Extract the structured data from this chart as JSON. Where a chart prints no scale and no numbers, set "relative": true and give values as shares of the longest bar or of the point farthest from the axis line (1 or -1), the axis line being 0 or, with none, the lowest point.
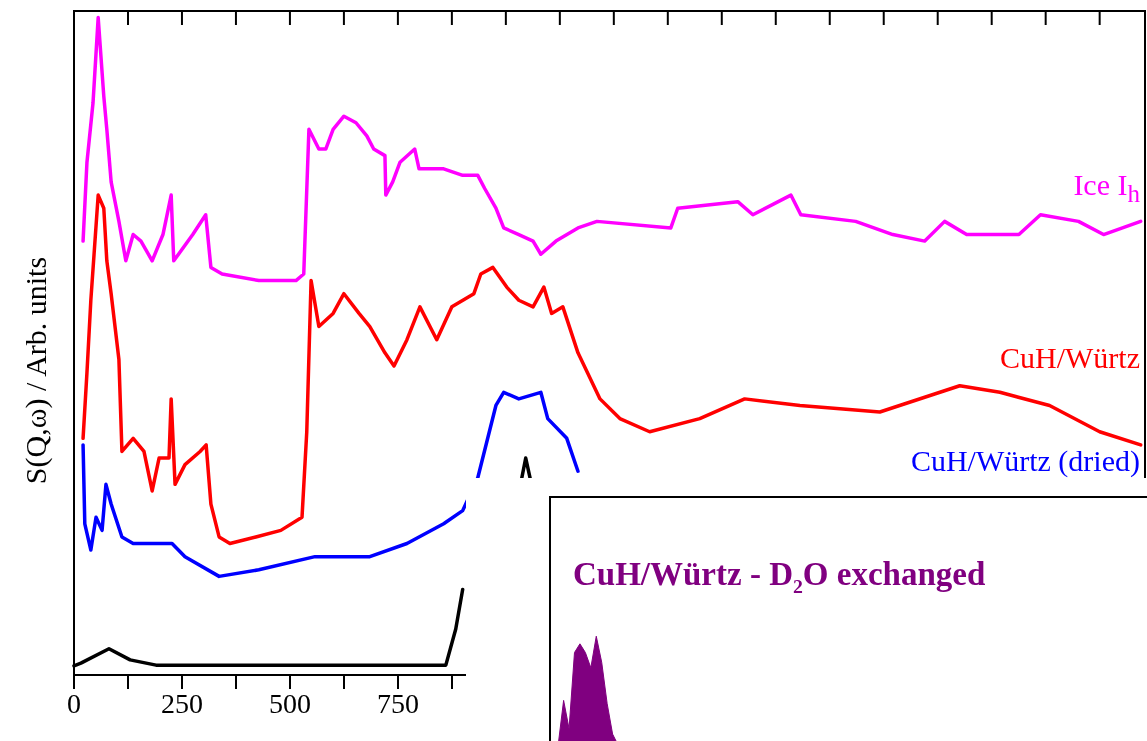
{
  "chart_data": [
    {
      "type": "line",
      "ylabel": "S(Q,ω) / Arb. units",
      "relative": true,
      "xlim": [
        0,
        2480
      ],
      "xticks": [
        0,
        {
          "value": 125,
          "label": null
        },
        250,
        {
          "value": 375,
          "label": null
        },
        500,
        {
          "value": 625,
          "label": null
        },
        750,
        {
          "value": 875,
          "label": null
        },
        {
          "value": 1000,
          "label": null
        },
        {
          "value": 1125,
          "label": null
        },
        {
          "value": 1250,
          "label": null
        },
        {
          "value": 1375,
          "label": null
        },
        {
          "value": 1500,
          "label": null
        },
        {
          "value": 1625,
          "label": null
        },
        {
          "value": 1750,
          "label": null
        },
        {
          "value": 1875,
          "label": null
        },
        {
          "value": 2000,
          "label": null
        },
        {
          "value": 2125,
          "label": null
        },
        {
          "value": 2250,
          "label": null
        },
        {
          "value": 2375,
          "label": null
        }
      ],
      "series": [
        {
          "name": "Ice I$_{h}$",
          "color": "#ff00ff",
          "x": [
            21,
            30,
            44,
            56,
            69,
            76,
            86,
            104,
            120,
            137,
            155,
            181,
            206,
            225,
            231,
            275,
            305,
            317,
            343,
            428,
            514,
            532,
            544,
            567,
            583,
            600,
            625,
            653,
            678,
            694,
            720,
            722,
            738,
            755,
            789,
            799,
            856,
            900,
            935,
            951,
            977,
            995,
            1030,
            1063,
            1081,
            1116,
            1167,
            1211,
            1382,
            1398,
            1537,
            1572,
            1660,
            1683,
            1810,
            1896,
            1970,
            2016,
            2067,
            2188,
            2238,
            2326,
            2384,
            2470
          ],
          "values": [
            0.66,
            0.78,
            0.87,
            1.0,
            0.88,
            0.83,
            0.75,
            0.69,
            0.63,
            0.67,
            0.66,
            0.63,
            0.67,
            0.73,
            0.63,
            0.67,
            0.7,
            0.62,
            0.61,
            0.6,
            0.6,
            0.61,
            0.83,
            0.8,
            0.8,
            0.83,
            0.85,
            0.84,
            0.82,
            0.8,
            0.79,
            0.73,
            0.75,
            0.78,
            0.8,
            0.77,
            0.77,
            0.76,
            0.76,
            0.74,
            0.71,
            0.68,
            0.67,
            0.66,
            0.64,
            0.66,
            0.68,
            0.69,
            0.68,
            0.71,
            0.72,
            0.7,
            0.73,
            0.7,
            0.69,
            0.67,
            0.66,
            0.69,
            0.67,
            0.67,
            0.7,
            0.69,
            0.67,
            0.69
          ]
        },
        {
          "name": "CuH/Würtz",
          "color": "#ff0000",
          "x": [
            21,
            30,
            39,
            56,
            69,
            76,
            86,
            104,
            111,
            137,
            162,
            181,
            197,
            220,
            225,
            234,
            257,
            292,
            306,
            317,
            336,
            361,
            421,
            479,
            528,
            539,
            549,
            567,
            600,
            625,
            660,
            685,
            720,
            741,
            771,
            801,
            840,
            875,
            926,
            942,
            970,
            1002,
            1030,
            1063,
            1088,
            1106,
            1132,
            1167,
            1218,
            1264,
            1333,
            1449,
            1553,
            1681,
            1866,
            2051,
            2144,
            2259,
            2375,
            2470
          ],
          "values": [
            0.36,
            0.46,
            0.57,
            0.73,
            0.71,
            0.63,
            0.58,
            0.48,
            0.34,
            0.36,
            0.34,
            0.28,
            0.33,
            0.33,
            0.42,
            0.29,
            0.32,
            0.34,
            0.35,
            0.26,
            0.21,
            0.2,
            0.21,
            0.22,
            0.24,
            0.37,
            0.6,
            0.53,
            0.55,
            0.58,
            0.55,
            0.53,
            0.49,
            0.47,
            0.51,
            0.56,
            0.51,
            0.56,
            0.58,
            0.61,
            0.62,
            0.59,
            0.57,
            0.56,
            0.59,
            0.55,
            0.56,
            0.49,
            0.42,
            0.39,
            0.37,
            0.39,
            0.42,
            0.41,
            0.4,
            0.44,
            0.43,
            0.41,
            0.37,
            0.35
          ]
        },
        {
          "name": "CuH/Würtz (dried)",
          "color": "#0000ff",
          "x": [
            21,
            25,
            39,
            51,
            65,
            74,
            86,
            111,
            137,
            197,
            227,
            257,
            336,
            428,
            558,
            685,
            771,
            856,
            900,
            935,
            977,
            995,
            1030,
            1081,
            1097,
            1141,
            1167
          ],
          "values": [
            0.35,
            0.23,
            0.19,
            0.24,
            0.22,
            0.29,
            0.26,
            0.21,
            0.2,
            0.2,
            0.2,
            0.18,
            0.15,
            0.16,
            0.18,
            0.18,
            0.2,
            0.23,
            0.25,
            0.3,
            0.41,
            0.43,
            0.42,
            0.43,
            0.39,
            0.36,
            0.31
          ]
        },
        {
          "color": "#000000",
          "x": [
            0,
            16,
            81,
            130,
            190,
            861,
            884,
            900,
            970,
            1037,
            1046,
            1056
          ],
          "values": [
            0.014,
            0.018,
            0.04,
            0.023,
            0.015,
            0.015,
            0.07,
            0.13,
            null,
            0.3,
            0.33,
            0.3
          ]
        }
      ]
    },
    {
      "type": "area",
      "title": "CuH/Würtz - D$_{2}$O exchanged",
      "relative": true,
      "color": "#800080",
      "categories": [
        null,
        null,
        null,
        null,
        null,
        null,
        null,
        null,
        null,
        null,
        null,
        null,
        null,
        null,
        null,
        null,
        null,
        null,
        null,
        null,
        null,
        null,
        null,
        null,
        null,
        null,
        null,
        null,
        null,
        null,
        null,
        null,
        null,
        null,
        null,
        null,
        null,
        null,
        null,
        null,
        null,
        null,
        null,
        null,
        null,
        null,
        null,
        null,
        null,
        null,
        null,
        null,
        null,
        null,
        null,
        null,
        null,
        null,
        null,
        null,
        null,
        null,
        null,
        null,
        null,
        null,
        null,
        null,
        null,
        null,
        null,
        null,
        null,
        null,
        null,
        null,
        null,
        null,
        null,
        null,
        null,
        null,
        null,
        null,
        null,
        null,
        null,
        null,
        null,
        null,
        null,
        null,
        null,
        null,
        null,
        null,
        null,
        null,
        null,
        null,
        null,
        null,
        null,
        null,
        null,
        null,
        null,
        null,
        null,
        null,
        null,
        null
      ],
      "values": [
        0,
        0,
        0.41,
        0.15,
        0.85,
        0.93,
        0.85,
        0.71,
        1.0,
        0.76,
        0.38,
        0.1,
        0,
        0,
        0,
        0,
        0,
        0,
        0,
        0,
        0,
        0,
        0,
        0,
        0,
        0,
        0,
        0,
        0,
        0,
        0,
        0,
        0,
        0,
        0,
        0,
        0,
        0,
        0,
        0,
        0,
        0,
        0,
        0,
        0,
        0,
        0,
        0,
        0,
        0,
        0,
        0,
        0,
        0,
        0,
        0,
        0,
        0,
        0,
        0,
        0,
        0,
        0,
        0,
        0,
        0,
        0,
        0,
        0,
        0,
        0,
        0,
        0,
        0,
        0,
        0,
        0,
        0,
        0,
        0,
        0,
        0,
        0,
        0,
        0,
        0,
        0,
        0,
        0,
        0,
        0,
        0,
        0,
        0,
        0,
        0,
        0,
        0,
        0,
        0,
        0,
        0,
        0,
        0,
        0,
        0,
        0,
        0,
        0,
        0,
        0,
        0
      ]
    }
  ]
}
